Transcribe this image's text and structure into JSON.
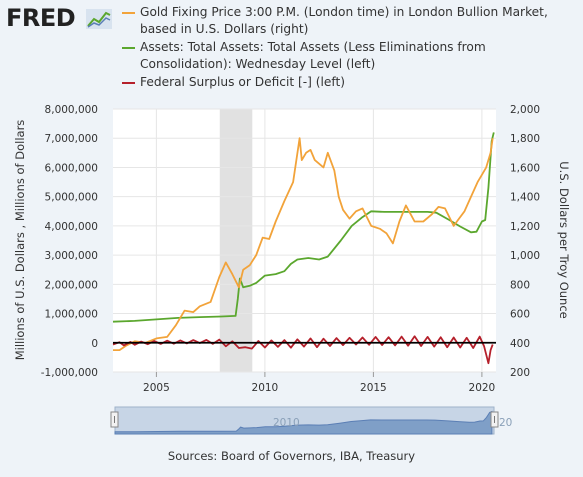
{
  "header": {
    "logo_text": "FRED",
    "logo_icon": "trend-line-icon"
  },
  "legend": [
    {
      "label": "Gold Fixing Price 3:00 P.M. (London time) in London Bullion Market, based in U.S. Dollars (right)",
      "color": "#f2a33a"
    },
    {
      "label": "Assets: Total Assets: Total Assets (Less Eliminations from Consolidation): Wednesday Level (left)",
      "color": "#5ba72e"
    },
    {
      "label": "Federal Surplus or Deficit [-] (left)",
      "color": "#b5202b"
    }
  ],
  "sources": "Sources: Board of Governors, IBA, Treasury",
  "navigator": {
    "labels": [
      "2010",
      "20"
    ]
  },
  "chart_data": {
    "type": "line",
    "xlim": [
      2003.0,
      2020.65
    ],
    "x_ticks": [
      2005,
      2010,
      2015,
      2020
    ],
    "x_tick_labels": [
      "2005",
      "2010",
      "2015",
      "2020"
    ],
    "left_axis": {
      "title": "Millions of U.S. Dollars , Millions of Dollars",
      "range": [
        -1000000,
        8000000
      ],
      "ticks": [
        -1000000,
        0,
        1000000,
        2000000,
        3000000,
        4000000,
        5000000,
        6000000,
        7000000,
        8000000
      ],
      "tick_labels": [
        "-1,000,000",
        "0",
        "1,000,000",
        "2,000,000",
        "3,000,000",
        "4,000,000",
        "5,000,000",
        "6,000,000",
        "7,000,000",
        "8,000,000"
      ]
    },
    "right_axis": {
      "title": "U.S. Dollars per Troy Ounce",
      "range": [
        200,
        2000
      ],
      "ticks": [
        200,
        400,
        600,
        800,
        1000,
        1200,
        1400,
        1600,
        1800,
        2000
      ],
      "tick_labels": [
        "200",
        "400",
        "600",
        "800",
        "1,000",
        "1,200",
        "1,400",
        "1,600",
        "1,800",
        "2,000"
      ]
    },
    "recession_shading": [
      [
        2007.92,
        2009.42
      ]
    ],
    "grid": true,
    "series": [
      {
        "name": "Gold Fixing Price 3:00 P.M. (London time) in London Bullion Market, based in U.S. Dollars (right)",
        "axis": "right",
        "color": "#f2a33a",
        "x": [
          2003.0,
          2003.3,
          2003.6,
          2004.0,
          2004.5,
          2005.0,
          2005.5,
          2005.9,
          2006.3,
          2006.7,
          2007.0,
          2007.5,
          2007.9,
          2008.2,
          2008.5,
          2008.8,
          2009.0,
          2009.3,
          2009.6,
          2009.9,
          2010.2,
          2010.5,
          2010.9,
          2011.3,
          2011.6,
          2011.7,
          2011.9,
          2012.1,
          2012.3,
          2012.7,
          2012.9,
          2013.2,
          2013.4,
          2013.6,
          2013.9,
          2014.2,
          2014.5,
          2014.9,
          2015.3,
          2015.6,
          2015.9,
          2016.2,
          2016.5,
          2016.9,
          2017.3,
          2017.7,
          2018.0,
          2018.3,
          2018.7,
          2018.9,
          2019.2,
          2019.5,
          2019.8,
          2020.0,
          2020.2,
          2020.4,
          2020.5
        ],
        "values": [
          350,
          350,
          380,
          410,
          400,
          430,
          440,
          520,
          620,
          610,
          650,
          680,
          850,
          950,
          870,
          780,
          900,
          930,
          1000,
          1120,
          1110,
          1230,
          1370,
          1500,
          1800,
          1650,
          1700,
          1720,
          1650,
          1600,
          1700,
          1580,
          1400,
          1310,
          1250,
          1300,
          1320,
          1200,
          1180,
          1150,
          1080,
          1230,
          1340,
          1230,
          1230,
          1280,
          1330,
          1320,
          1200,
          1240,
          1300,
          1400,
          1500,
          1550,
          1600,
          1700,
          1800
        ]
      },
      {
        "name": "Assets: Total Assets: Total Assets (Less Eliminations from Consolidation): Wednesday Level (left)",
        "axis": "left",
        "color": "#5ba72e",
        "x": [
          2003.0,
          2004.0,
          2005.0,
          2006.0,
          2007.0,
          2008.0,
          2008.65,
          2008.75,
          2008.85,
          2009.0,
          2009.3,
          2009.6,
          2010.0,
          2010.5,
          2010.9,
          2011.2,
          2011.5,
          2012.0,
          2012.5,
          2012.9,
          2013.5,
          2014.0,
          2014.5,
          2014.9,
          2015.5,
          2016.5,
          2017.5,
          2017.9,
          2018.5,
          2019.0,
          2019.5,
          2019.75,
          2020.0,
          2020.15,
          2020.3,
          2020.45,
          2020.55
        ],
        "values": [
          720000,
          750000,
          800000,
          850000,
          880000,
          900000,
          920000,
          1500000,
          2200000,
          1900000,
          1950000,
          2050000,
          2300000,
          2350000,
          2450000,
          2700000,
          2850000,
          2900000,
          2850000,
          2950000,
          3500000,
          4000000,
          4300000,
          4500000,
          4480000,
          4480000,
          4480000,
          4450000,
          4200000,
          3980000,
          3780000,
          3800000,
          4150000,
          4200000,
          5300000,
          6900000,
          7200000
        ]
      },
      {
        "name": "Federal Surplus or Deficit [-] (left)",
        "axis": "left",
        "color": "#b5202b",
        "x": [
          2003.0,
          2003.3,
          2003.5,
          2003.8,
          2004.0,
          2004.3,
          2004.6,
          2004.9,
          2005.2,
          2005.5,
          2005.8,
          2006.1,
          2006.4,
          2006.7,
          2007.0,
          2007.3,
          2007.6,
          2007.9,
          2008.2,
          2008.5,
          2008.8,
          2009.1,
          2009.4,
          2009.7,
          2010.0,
          2010.3,
          2010.6,
          2010.9,
          2011.2,
          2011.5,
          2011.8,
          2012.1,
          2012.4,
          2012.7,
          2013.0,
          2013.3,
          2013.6,
          2013.9,
          2014.2,
          2014.5,
          2014.8,
          2015.1,
          2015.4,
          2015.7,
          2016.0,
          2016.3,
          2016.6,
          2016.9,
          2017.2,
          2017.5,
          2017.8,
          2018.1,
          2018.4,
          2018.7,
          2019.0,
          2019.3,
          2019.6,
          2019.9,
          2020.1,
          2020.3,
          2020.4,
          2020.5
        ],
        "values": [
          -60000,
          20000,
          -90000,
          30000,
          -70000,
          40000,
          -50000,
          60000,
          -40000,
          70000,
          -30000,
          80000,
          -20000,
          90000,
          -10000,
          100000,
          -40000,
          110000,
          -120000,
          50000,
          -180000,
          -150000,
          -200000,
          60000,
          -160000,
          80000,
          -140000,
          90000,
          -170000,
          120000,
          -130000,
          150000,
          -150000,
          140000,
          -110000,
          160000,
          -80000,
          170000,
          -60000,
          180000,
          -70000,
          200000,
          -80000,
          190000,
          -90000,
          210000,
          -100000,
          220000,
          -110000,
          200000,
          -130000,
          190000,
          -150000,
          180000,
          -160000,
          170000,
          -180000,
          210000,
          -120000,
          -700000,
          -250000,
          -60000
        ]
      }
    ]
  }
}
